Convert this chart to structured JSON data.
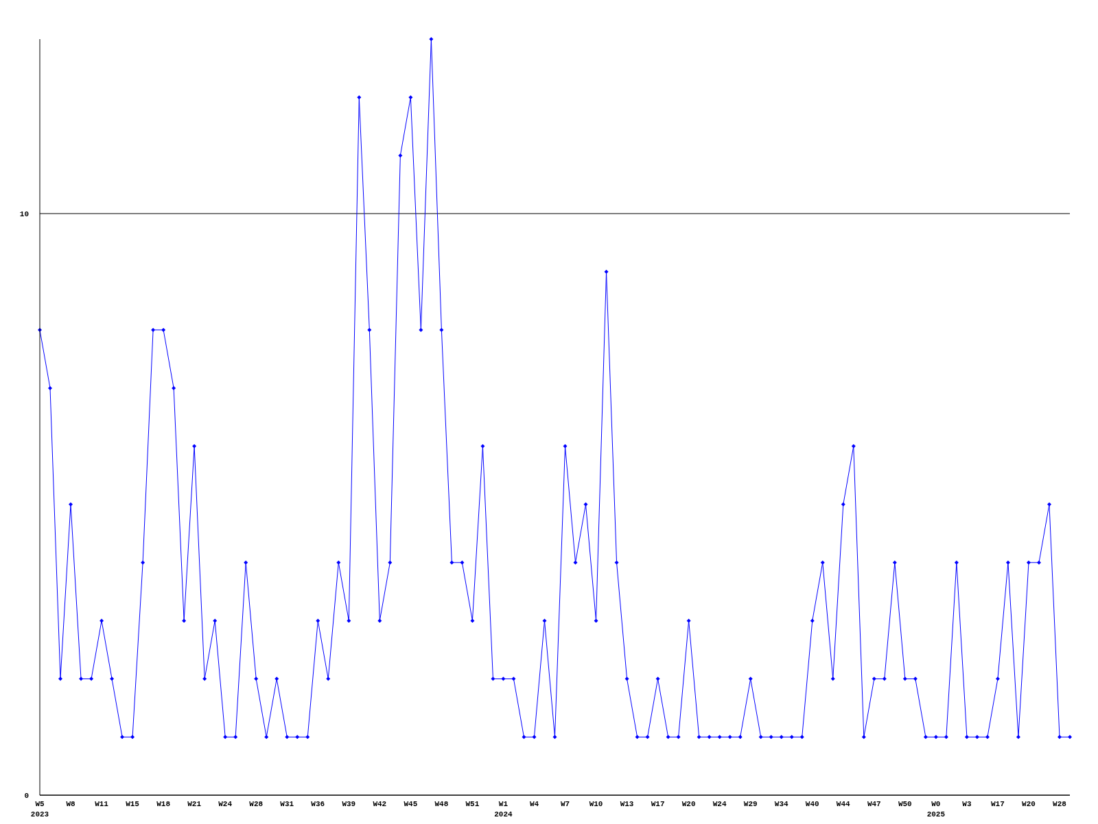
{
  "chart_data": {
    "type": "line",
    "categories": [
      "W5\n2023",
      null,
      null,
      "W8",
      null,
      null,
      "W11",
      null,
      null,
      "W15",
      null,
      null,
      "W18",
      null,
      null,
      "W21",
      null,
      null,
      "W24",
      null,
      null,
      "W28",
      null,
      null,
      "W31",
      null,
      null,
      "W36",
      null,
      null,
      "W39",
      null,
      null,
      "W42",
      null,
      null,
      "W45",
      null,
      null,
      "W48",
      null,
      null,
      "W51",
      null,
      null,
      "W1\n2024",
      null,
      null,
      "W4",
      null,
      null,
      "W7",
      null,
      null,
      "W10",
      null,
      null,
      "W13",
      null,
      null,
      "W17",
      null,
      null,
      "W20",
      null,
      null,
      "W24",
      null,
      null,
      "W29",
      null,
      null,
      "W34",
      null,
      null,
      "W40",
      null,
      null,
      "W44",
      null,
      null,
      "W47",
      null,
      null,
      "W50",
      null,
      null,
      "W0\n2025",
      null,
      null,
      "W3",
      null,
      null,
      "W17",
      null,
      null,
      "W20",
      null,
      null,
      "W28",
      null
    ],
    "series": [
      {
        "color": "#0000ff",
        "values": [
          8,
          7,
          2,
          5,
          2,
          2,
          3,
          2,
          1,
          1,
          4,
          8,
          8,
          7,
          3,
          6,
          2,
          3,
          1,
          1,
          4,
          2,
          1,
          2,
          1,
          1,
          1,
          3,
          2,
          4,
          3,
          12,
          8,
          3,
          4,
          11,
          12,
          8,
          13,
          8,
          4,
          4,
          3,
          6,
          2,
          2,
          2,
          1,
          1,
          3,
          1,
          6,
          4,
          5,
          3,
          9,
          4,
          2,
          1,
          1,
          2,
          1,
          1,
          3,
          1,
          1,
          1,
          1,
          1,
          2,
          1,
          1,
          1,
          1,
          1,
          3,
          4,
          2,
          5,
          6,
          1,
          2,
          2,
          4,
          2,
          2,
          1,
          1,
          1,
          4,
          1,
          1,
          1,
          2,
          4,
          1,
          4,
          4,
          5,
          1,
          1
        ]
      }
    ],
    "ylim": [
      0,
      13
    ],
    "yticks": [
      0,
      10
    ],
    "grid": "y",
    "marker": "diamond",
    "line_style": "solid"
  }
}
